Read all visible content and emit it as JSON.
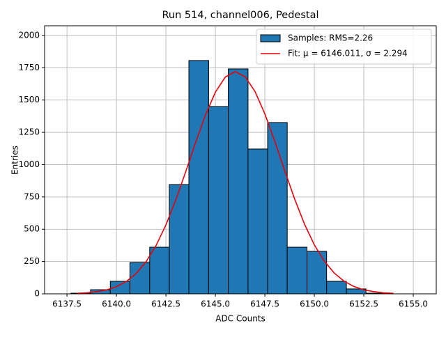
{
  "chart_data": {
    "type": "histogram",
    "title": "Run 514, channel006, Pedestal",
    "x_label": "ADC Counts",
    "y_label": "Entries",
    "bins": [
      6137.7,
      6138.69,
      6139.69,
      6140.68,
      6141.68,
      6142.67,
      6143.66,
      6144.66,
      6145.65,
      6146.65,
      6147.64,
      6148.63,
      6149.63,
      6150.62,
      6151.62,
      6152.61,
      6153.6
    ],
    "series": [
      {
        "name": "Samples: RMS=2.26",
        "color": "#1f77b4",
        "values": [
          5,
          32,
          97,
          243,
          361,
          846,
          1806,
          1450,
          1741,
          1121,
          1326,
          361,
          329,
          97,
          38,
          5
        ]
      },
      {
        "name": "Fit: μ = 6146.011, σ = 2.294",
        "color": "#e8000b",
        "type": "line",
        "x": [
          6138,
          6138.5,
          6139,
          6139.5,
          6140,
          6140.5,
          6141,
          6141.5,
          6142,
          6142.5,
          6143,
          6143.5,
          6144,
          6144.5,
          6145,
          6145.5,
          6146,
          6146.5,
          6147,
          6147.5,
          6148,
          6148.5,
          6149,
          6149.5,
          6150,
          6150.5,
          6151,
          6151.5,
          6152,
          6152.5,
          6153,
          6153.5,
          6154
        ],
        "values": [
          3.9,
          8.1,
          16.1,
          30.6,
          55.5,
          96,
          158,
          249,
          373,
          533,
          727,
          945,
          1171,
          1385,
          1561,
          1678,
          1720,
          1681,
          1567,
          1393,
          1181,
          955,
          736,
          541,
          379,
          254,
          162,
          98,
          57,
          31,
          17,
          8,
          4
        ]
      }
    ],
    "xlim": [
      6136.37,
      6156.16
    ],
    "ylim": [
      0,
      2075
    ],
    "xticks": [
      6137.5,
      {
        "value": 6140,
        "label": "6140.0"
      },
      6142.5,
      {
        "value": 6145,
        "label": "6145.0"
      },
      6147.5,
      {
        "value": 6150,
        "label": "6150.0"
      },
      6152.5,
      {
        "value": 6155,
        "label": "6155.0"
      }
    ],
    "yticks": [
      0,
      250,
      500,
      750,
      1000,
      1250,
      1500,
      1750,
      2000
    ],
    "grid": true,
    "legend": "upper right"
  }
}
